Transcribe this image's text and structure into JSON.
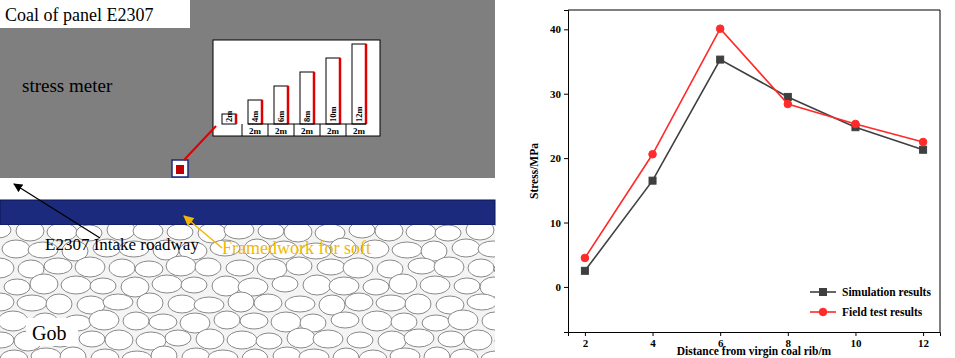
{
  "diagram": {
    "panel_label": "Coal of panel E2307",
    "meter_label": "stress meter",
    "depth_labels": [
      "2m",
      "4m",
      "6m",
      "8m",
      "10m",
      "12m"
    ],
    "spacing_labels": [
      "2m",
      "2m",
      "2m",
      "2m",
      "2m"
    ],
    "roadway_label": "E2307 Intake roadway",
    "support_label": "Framedwork for soft",
    "gob_label": "Gob"
  },
  "chart_data": {
    "type": "line",
    "x_label": "Distance from virgin coal rib/m",
    "y_label": "Stress/MPa",
    "x": [
      2,
      4,
      6,
      8,
      10,
      12
    ],
    "series": [
      {
        "name": "Simulation results",
        "color": "#3f3f3f",
        "marker": "square",
        "values": [
          2.5,
          16.5,
          35.3,
          29.5,
          24.8,
          21.3
        ]
      },
      {
        "name": "Field test results",
        "color": "#ff2a2a",
        "marker": "circle",
        "values": [
          4.5,
          20.6,
          40.1,
          28.4,
          25.3,
          22.5
        ]
      }
    ],
    "xlim": [
      1.5,
      12.5
    ],
    "xticks": [
      2,
      4,
      6,
      8,
      10,
      12
    ],
    "ylim": [
      -7,
      43
    ],
    "yticks": [
      0,
      10,
      20,
      30,
      40
    ],
    "legend": "lower right"
  }
}
